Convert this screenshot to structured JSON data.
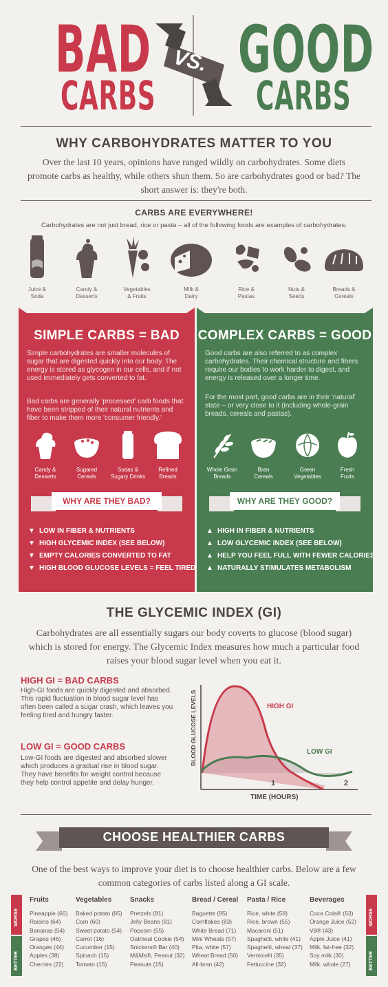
{
  "header": {
    "bad": "BAD",
    "bad_carbs": "CARBS",
    "vs": "VS.",
    "good": "GOOD",
    "good_carbs": "CARBS"
  },
  "why": {
    "title": "WHY CARBOHYDRATES MATTER TO YOU",
    "body": "Over the last 10 years, opinions have ranged wildly on carbohydrates. Some diets promote carbs as healthy, while others shun them. So are carbohydrates good or bad? The short answer is: they're both."
  },
  "everywhere": {
    "title": "CARBS ARE EVERYWHERE!",
    "body": "Carbohydrates are not just bread, rice or pasta – all of the following foods are examples of carbohydrates:",
    "foods": [
      {
        "l1": "Juice &",
        "l2": "Soda",
        "icon": "can-icon"
      },
      {
        "l1": "Candy &",
        "l2": "Desserts",
        "icon": "cupcake-icon"
      },
      {
        "l1": "Vegetables",
        "l2": "& Fruits",
        "icon": "carrot-icon"
      },
      {
        "l1": "Milk &",
        "l2": "Dairy",
        "icon": "cheese-icon"
      },
      {
        "l1": "Rice &",
        "l2": "Pastas",
        "icon": "pasta-icon"
      },
      {
        "l1": "Nuts &",
        "l2": "Seeds",
        "icon": "nuts-icon"
      },
      {
        "l1": "Breads &",
        "l2": "Cereals",
        "icon": "bread-icon"
      }
    ]
  },
  "simple": {
    "title": "SIMPLE CARBS = BAD",
    "p1": "Simple carbohydrates are smaller molecules of sugar that are digested quickly into our body. The energy is stored as glycogen in our cells, and if not used immediately gets converted to fat.",
    "p2": "Bad carbs are generally 'processed' carb foods that have been stripped of their natural nutrients and fiber to make them more 'consumer friendly.'",
    "icons": [
      {
        "l1": "Candy &",
        "l2": "Desserts"
      },
      {
        "l1": "Sugared",
        "l2": "Cereals"
      },
      {
        "l1": "Sodas &",
        "l2": "Sugary Drinks"
      },
      {
        "l1": "Refined",
        "l2": "Breads"
      }
    ],
    "banner": "WHY ARE THEY BAD?",
    "points": [
      "LOW IN FIBER & NUTRIENTS",
      "HIGH GLYCEMIC INDEX (SEE BELOW)",
      "EMPTY CALORIES CONVERTED TO FAT",
      "HIGH BLOOD GLUCOSE LEVELS = FEEL TIRED"
    ]
  },
  "complex": {
    "title": "COMPLEX CARBS = GOOD",
    "p1": "Good carbs are also referred to as complex carbohydrates. Their chemical structure and fibers require our bodies to work harder to digest, and energy is released over a longer time.",
    "p2": "For the most part, good carbs are in their 'natural' state – or very close to it (including whole-grain breads, cereals and pastas).",
    "icons": [
      {
        "l1": "Whole Grain",
        "l2": "Breads"
      },
      {
        "l1": "Bran",
        "l2": "Cereals"
      },
      {
        "l1": "Green",
        "l2": "Vegetables"
      },
      {
        "l1": "Fresh",
        "l2": "Fruits"
      }
    ],
    "banner": "WHY ARE THEY GOOD?",
    "points": [
      "HIGH IN FIBER & NUTRIENTS",
      "LOW GLYCEMIC INDEX (SEE BELOW)",
      "HELP YOU FEEL FULL WITH FEWER CALORIES",
      "NATURALLY STIMULATES METABOLISM"
    ]
  },
  "gi": {
    "title": "THE GLYCEMIC INDEX (GI)",
    "body": "Carbohydrates are all essentially sugars our body coverts to glucose (blood sugar) which is stored for energy. The Glycemic Index measures how much a particular food raises your blood sugar level when you eat it.",
    "high_title": "HIGH GI = BAD CARBS",
    "high_body": "High-GI foods are quickly digested and absorbed. This rapid fluctuation in blood sugar level has often been called a sugar crash, which leaves you feeling tired and hungry faster.",
    "low_title": "LOW GI = GOOD CARBS",
    "low_body": "Low-GI foods are digested and absorbed slower which produces a gradual rise in blood sugar. They have benefits for weight control because they help control appetite and delay hunger.",
    "chart": {
      "ylabel": "BLOOD GLUCOSE LEVELS",
      "xlabel": "TIME (HOURS)",
      "ticks": [
        "1",
        "2"
      ],
      "high_label": "HIGH GI",
      "low_label": "LOW GI",
      "high_color": "#c83a4b",
      "low_color": "#4a7d52"
    }
  },
  "choose": {
    "title": "CHOOSE HEALTHIER CARBS",
    "body": "One of the best ways to improve your diet is to choose healthier carbs. Below are a few common categories of carbs listed along a GI scale.",
    "worse": "WORSE",
    "better": "BETTER",
    "columns": [
      {
        "h": "Fruits",
        "items": [
          "Pineapple (66)",
          "Raisins (64)",
          "Bananas (54)",
          "Grapes (46)",
          "Oranges (44)",
          "Apples (38)",
          "Cherries (22)"
        ]
      },
      {
        "h": "Vegetables",
        "items": [
          "Baked potato (85)",
          "Corn (60)",
          "Sweet potato (54)",
          "Carrot (16)",
          "Cucumber (15)",
          "Spinach (15)",
          "Tomato (15)"
        ]
      },
      {
        "h": "Snacks",
        "items": [
          "Pretzels (81)",
          "Jelly Beans (81)",
          "Popcorn (55)",
          "Oatmeal Cookie (54)",
          "Snickers® Bar (40)",
          "M&Ms®, Peanut (32)",
          "Peanuts (15)"
        ]
      },
      {
        "h": "Bread / Cereal",
        "items": [
          "Baguette (95)",
          "Cornflakes (83)",
          "White Bread (71)",
          "Mini Wheats (57)",
          "Pita, white (57)",
          "Wheat Bread (50)",
          "All-bran (42)"
        ]
      },
      {
        "h": "Pasta / Rice",
        "items": [
          "Rice, white (58)",
          "Rice, brown (55)",
          "Macaroni (51)",
          "Spaghetti, white (41)",
          "Spaghetti, wheat (37)",
          "Vermicelli (35)",
          "Fettuccine (32)"
        ]
      },
      {
        "h": "Beverages",
        "items": [
          "Coca Cola® (63)",
          "Orange Juice (52)",
          "V8® (43)",
          "Apple Juice (41)",
          "Milk, fat-free (32)",
          "Soy milk (30)",
          "Milk, whole (27)"
        ]
      }
    ]
  }
}
